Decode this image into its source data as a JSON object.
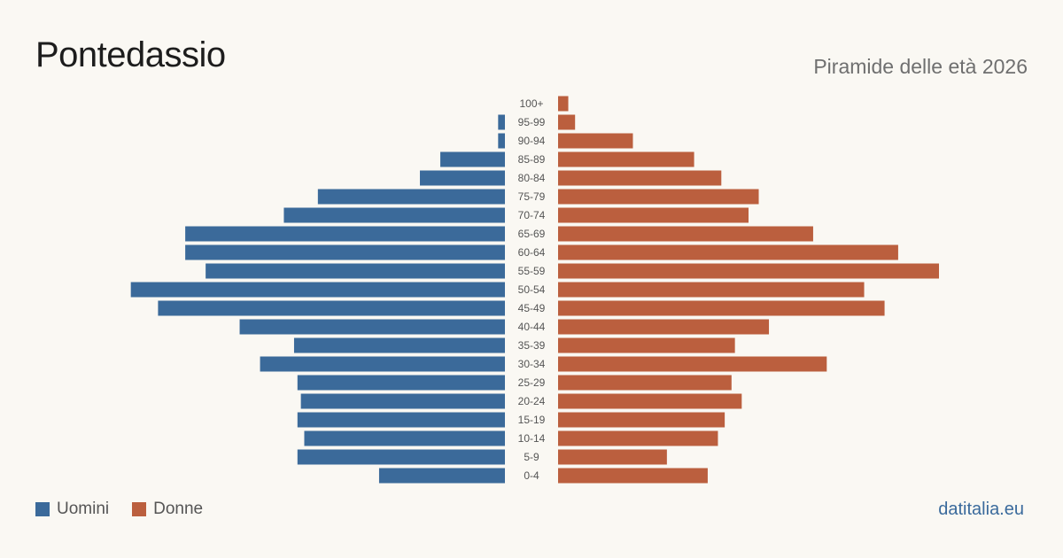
{
  "header": {
    "title": "Pontedassio",
    "subtitle": "Piramide delle età 2026"
  },
  "legend": {
    "men_label": "Uomini",
    "women_label": "Donne"
  },
  "footer": {
    "brand": "datitalia.eu"
  },
  "colors": {
    "men": "#3b6a9a",
    "women": "#bb5f3e"
  },
  "chart_data": {
    "type": "bar",
    "orientation": "horizontal-pyramid",
    "categories": [
      "100+",
      "95-99",
      "90-94",
      "85-89",
      "80-84",
      "75-79",
      "70-74",
      "65-69",
      "60-64",
      "55-59",
      "50-54",
      "45-49",
      "40-44",
      "35-39",
      "30-34",
      "25-29",
      "20-24",
      "15-19",
      "10-14",
      "5-9",
      "0-4"
    ],
    "series": [
      {
        "name": "Uomini",
        "values": [
          0,
          1,
          1,
          9.5,
          12.5,
          27.5,
          32.5,
          47,
          47,
          44,
          55,
          51,
          39,
          31,
          36,
          30.5,
          30,
          30.5,
          29.5,
          30.5,
          18.5
        ]
      },
      {
        "name": "Donne",
        "values": [
          1.5,
          2.5,
          11,
          20,
          24,
          29.5,
          28,
          37.5,
          50,
          56,
          45,
          48,
          31,
          26,
          39.5,
          25.5,
          27,
          24.5,
          23.5,
          16,
          22
        ]
      }
    ],
    "max_value": 56
  }
}
